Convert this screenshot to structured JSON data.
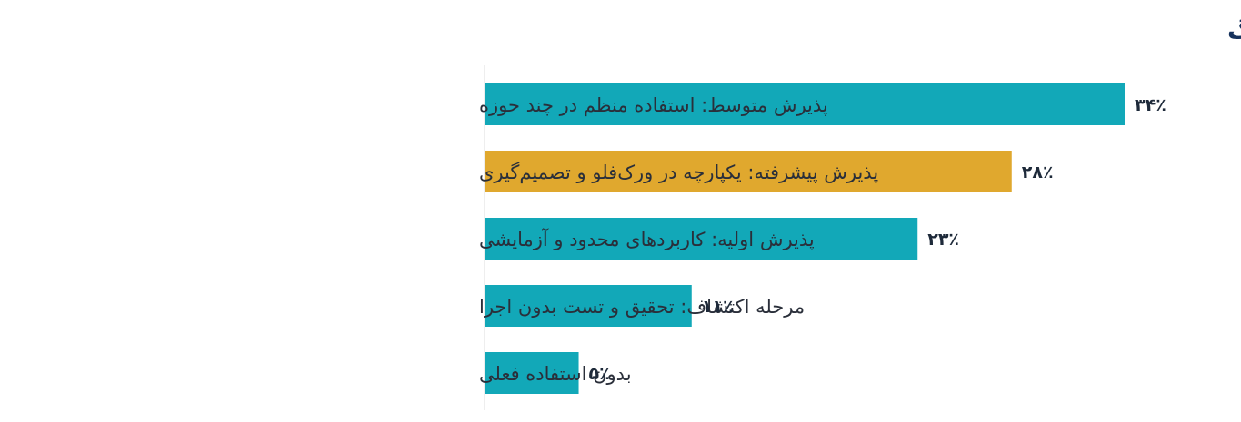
{
  "chart_data": {
    "type": "bar",
    "orientation": "horizontal",
    "title": "سطح فعلی استفاده از ابزارهای AI در ایمیل مارکتینگ",
    "xlabel": "",
    "ylabel": "",
    "xlim": [
      0,
      40
    ],
    "grid": false,
    "legend": "none",
    "categories": [
      "پذیرش متوسط: استفاده منظم در چند حوزه",
      "پذیرش پیشرفته: یکپارچه در ورک‌فلو و تصمیم‌گیری",
      "پذیرش اولیه: کاربردهای محدود و آزمایشی",
      "مرحله اکتشاف: تحقیق و تست بدون اجرا",
      "بدون استفاده فعلی"
    ],
    "values": [
      34,
      28,
      23,
      11,
      5
    ],
    "value_labels": [
      "۳۴٪",
      "۲۸٪",
      "۲۳٪",
      "۱۱٪",
      "۵٪"
    ],
    "highlight_index": 1,
    "colors": {
      "bar": "#12a8b8",
      "highlight": "#e0a82e",
      "title": "#16325c",
      "label": "#2a2f3a",
      "value": "#1e2a3a",
      "axis": "#dddddd"
    }
  }
}
